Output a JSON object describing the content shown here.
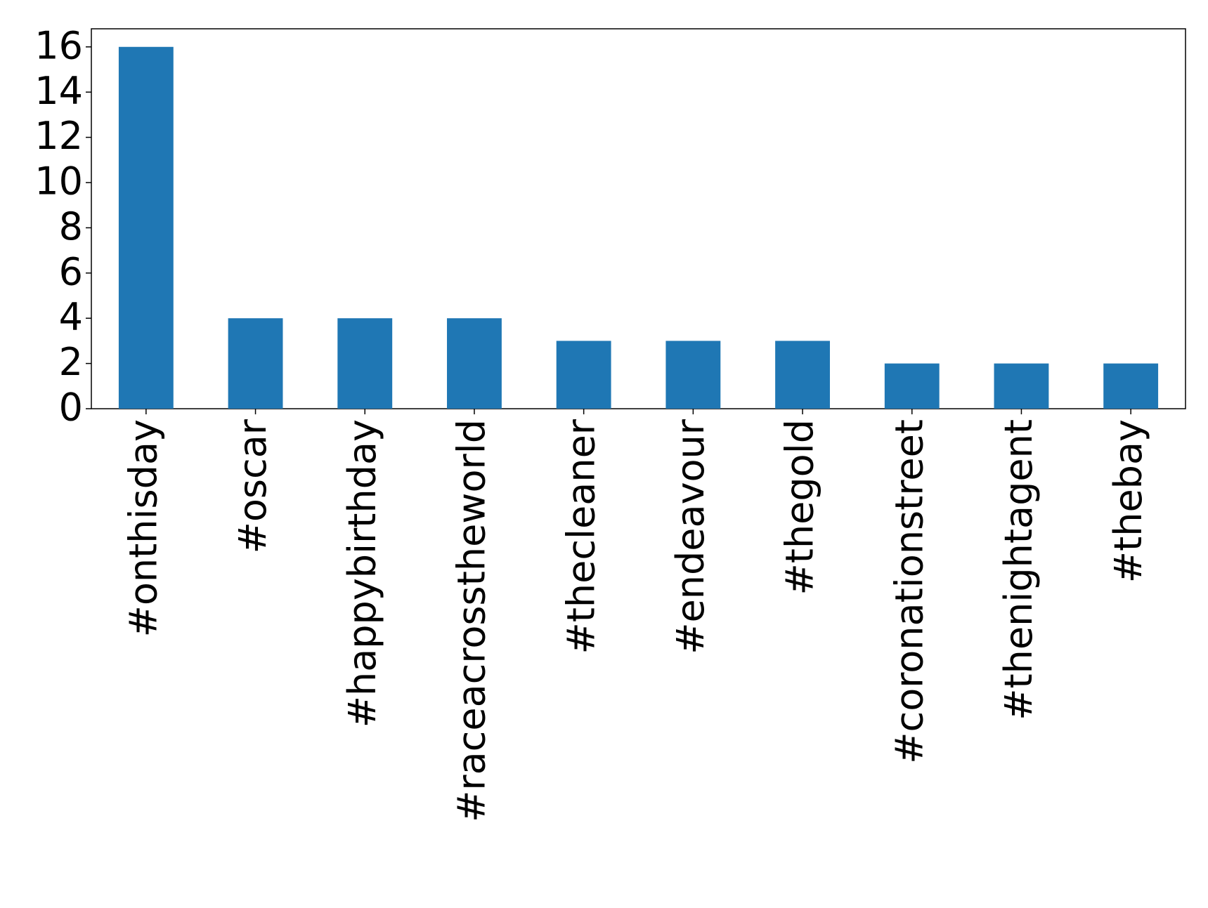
{
  "chart_data": {
    "type": "bar",
    "categories": [
      "#onthisday",
      "#oscar",
      "#happybirthday",
      "#raceacrosstheworld",
      "#thecleaner",
      "#endeavour",
      "#thegold",
      "#coronationstreet",
      "#thenightagent",
      "#thebay"
    ],
    "values": [
      16,
      4,
      4,
      4,
      3,
      3,
      3,
      2,
      2,
      2
    ],
    "color": "#1f77b4",
    "ylim": [
      0,
      16.8
    ],
    "yticks": [
      0,
      2,
      4,
      6,
      8,
      10,
      12,
      14,
      16
    ],
    "grid": false
  }
}
